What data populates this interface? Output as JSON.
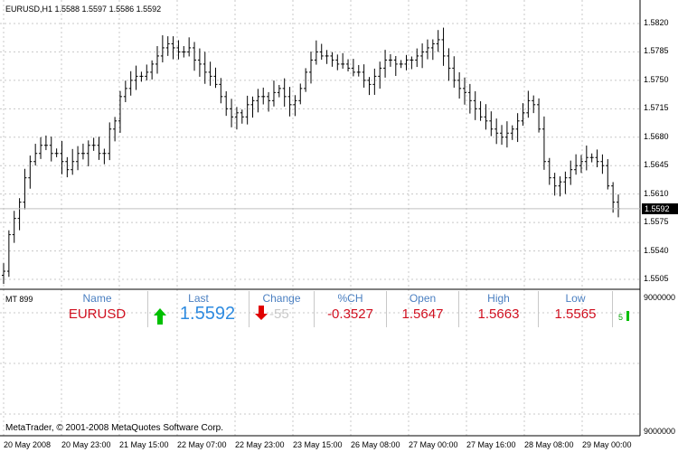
{
  "window": {
    "chart_info": "EURUSD,H1  1.5588 1.5597 1.5586 1.5592",
    "current_price": "1.5592",
    "copyright": "MetaTrader, © 2001-2008 MetaQuotes Software Corp."
  },
  "price_axis": [
    "1.5820",
    "1.5785",
    "1.5750",
    "1.5715",
    "1.5680",
    "1.5645",
    "1.5610",
    "1.5575",
    "1.5540",
    "1.5505"
  ],
  "time_axis": [
    "20 May 2008",
    "20 May 23:00",
    "21 May 15:00",
    "22 May 07:00",
    "22 May 23:00",
    "23 May 15:00",
    "26 May 08:00",
    "27 May 00:00",
    "27 May 16:00",
    "28 May 08:00",
    "29 May 00:00"
  ],
  "indicator": {
    "name": "MT 899",
    "axis_top": "9000000",
    "axis_bottom": "9000000",
    "columns": {
      "name_header": "Name",
      "name_value": "EURUSD",
      "last_header": "Last",
      "last_value": "1.5592",
      "change_header": "Change",
      "change_value": "-55",
      "pch_header": "%CH",
      "pch_value": "-0.3527",
      "open_header": "Open",
      "open_value": "1.5647",
      "high_header": "High",
      "high_value": "1.5663",
      "low_header": "Low",
      "low_value": "1.5565"
    },
    "mini_value": "5"
  },
  "colors": {
    "up": "#00c000",
    "down": "#e00000",
    "last": "#2e8be0",
    "name": "#d01020"
  },
  "chart_data": {
    "type": "ohlc",
    "symbol": "EURUSD",
    "timeframe": "H1",
    "ylim": [
      1.5495,
      1.584
    ],
    "price_axis_ticks": [
      1.582,
      1.5785,
      1.575,
      1.5715,
      1.568,
      1.5645,
      1.561,
      1.5575,
      1.554,
      1.5505
    ],
    "time_ticks": [
      "20 May 2008",
      "20 May 23:00",
      "21 May 15:00",
      "22 May 07:00",
      "22 May 23:00",
      "23 May 15:00",
      "26 May 08:00",
      "27 May 00:00",
      "27 May 16:00",
      "28 May 08:00",
      "29 May 00:00"
    ],
    "last_price": 1.5592,
    "closes": [
      1.5515,
      1.556,
      1.558,
      1.56,
      1.563,
      1.565,
      1.566,
      1.567,
      1.567,
      1.566,
      1.566,
      1.565,
      1.564,
      1.565,
      1.566,
      1.566,
      1.567,
      1.567,
      1.566,
      1.566,
      1.569,
      1.57,
      1.573,
      1.574,
      1.575,
      1.5755,
      1.5755,
      1.576,
      1.577,
      1.578,
      1.579,
      1.5795,
      1.579,
      1.5785,
      1.5785,
      1.579,
      1.5775,
      1.577,
      1.576,
      1.5755,
      1.5745,
      1.573,
      1.5715,
      1.5705,
      1.571,
      1.5705,
      1.572,
      1.5725,
      1.573,
      1.573,
      1.5725,
      1.5735,
      1.574,
      1.573,
      1.572,
      1.5725,
      1.574,
      1.576,
      1.5775,
      1.5785,
      1.578,
      1.578,
      1.5775,
      1.577,
      1.577,
      1.5765,
      1.576,
      1.576,
      1.575,
      1.5745,
      1.5755,
      1.5765,
      1.5775,
      1.5775,
      1.577,
      1.577,
      1.5775,
      1.5775,
      1.578,
      1.5785,
      1.579,
      1.5795,
      1.58,
      1.578,
      1.5765,
      1.575,
      1.574,
      1.5735,
      1.5725,
      1.5715,
      1.5705,
      1.57,
      1.569,
      1.5685,
      1.568,
      1.5685,
      1.569,
      1.57,
      1.571,
      1.5725,
      1.572,
      1.569,
      1.565,
      1.563,
      1.562,
      1.5625,
      1.563,
      1.564,
      1.5645,
      1.565,
      1.5655,
      1.5655,
      1.565,
      1.5645,
      1.562,
      1.56,
      1.5592
    ]
  }
}
